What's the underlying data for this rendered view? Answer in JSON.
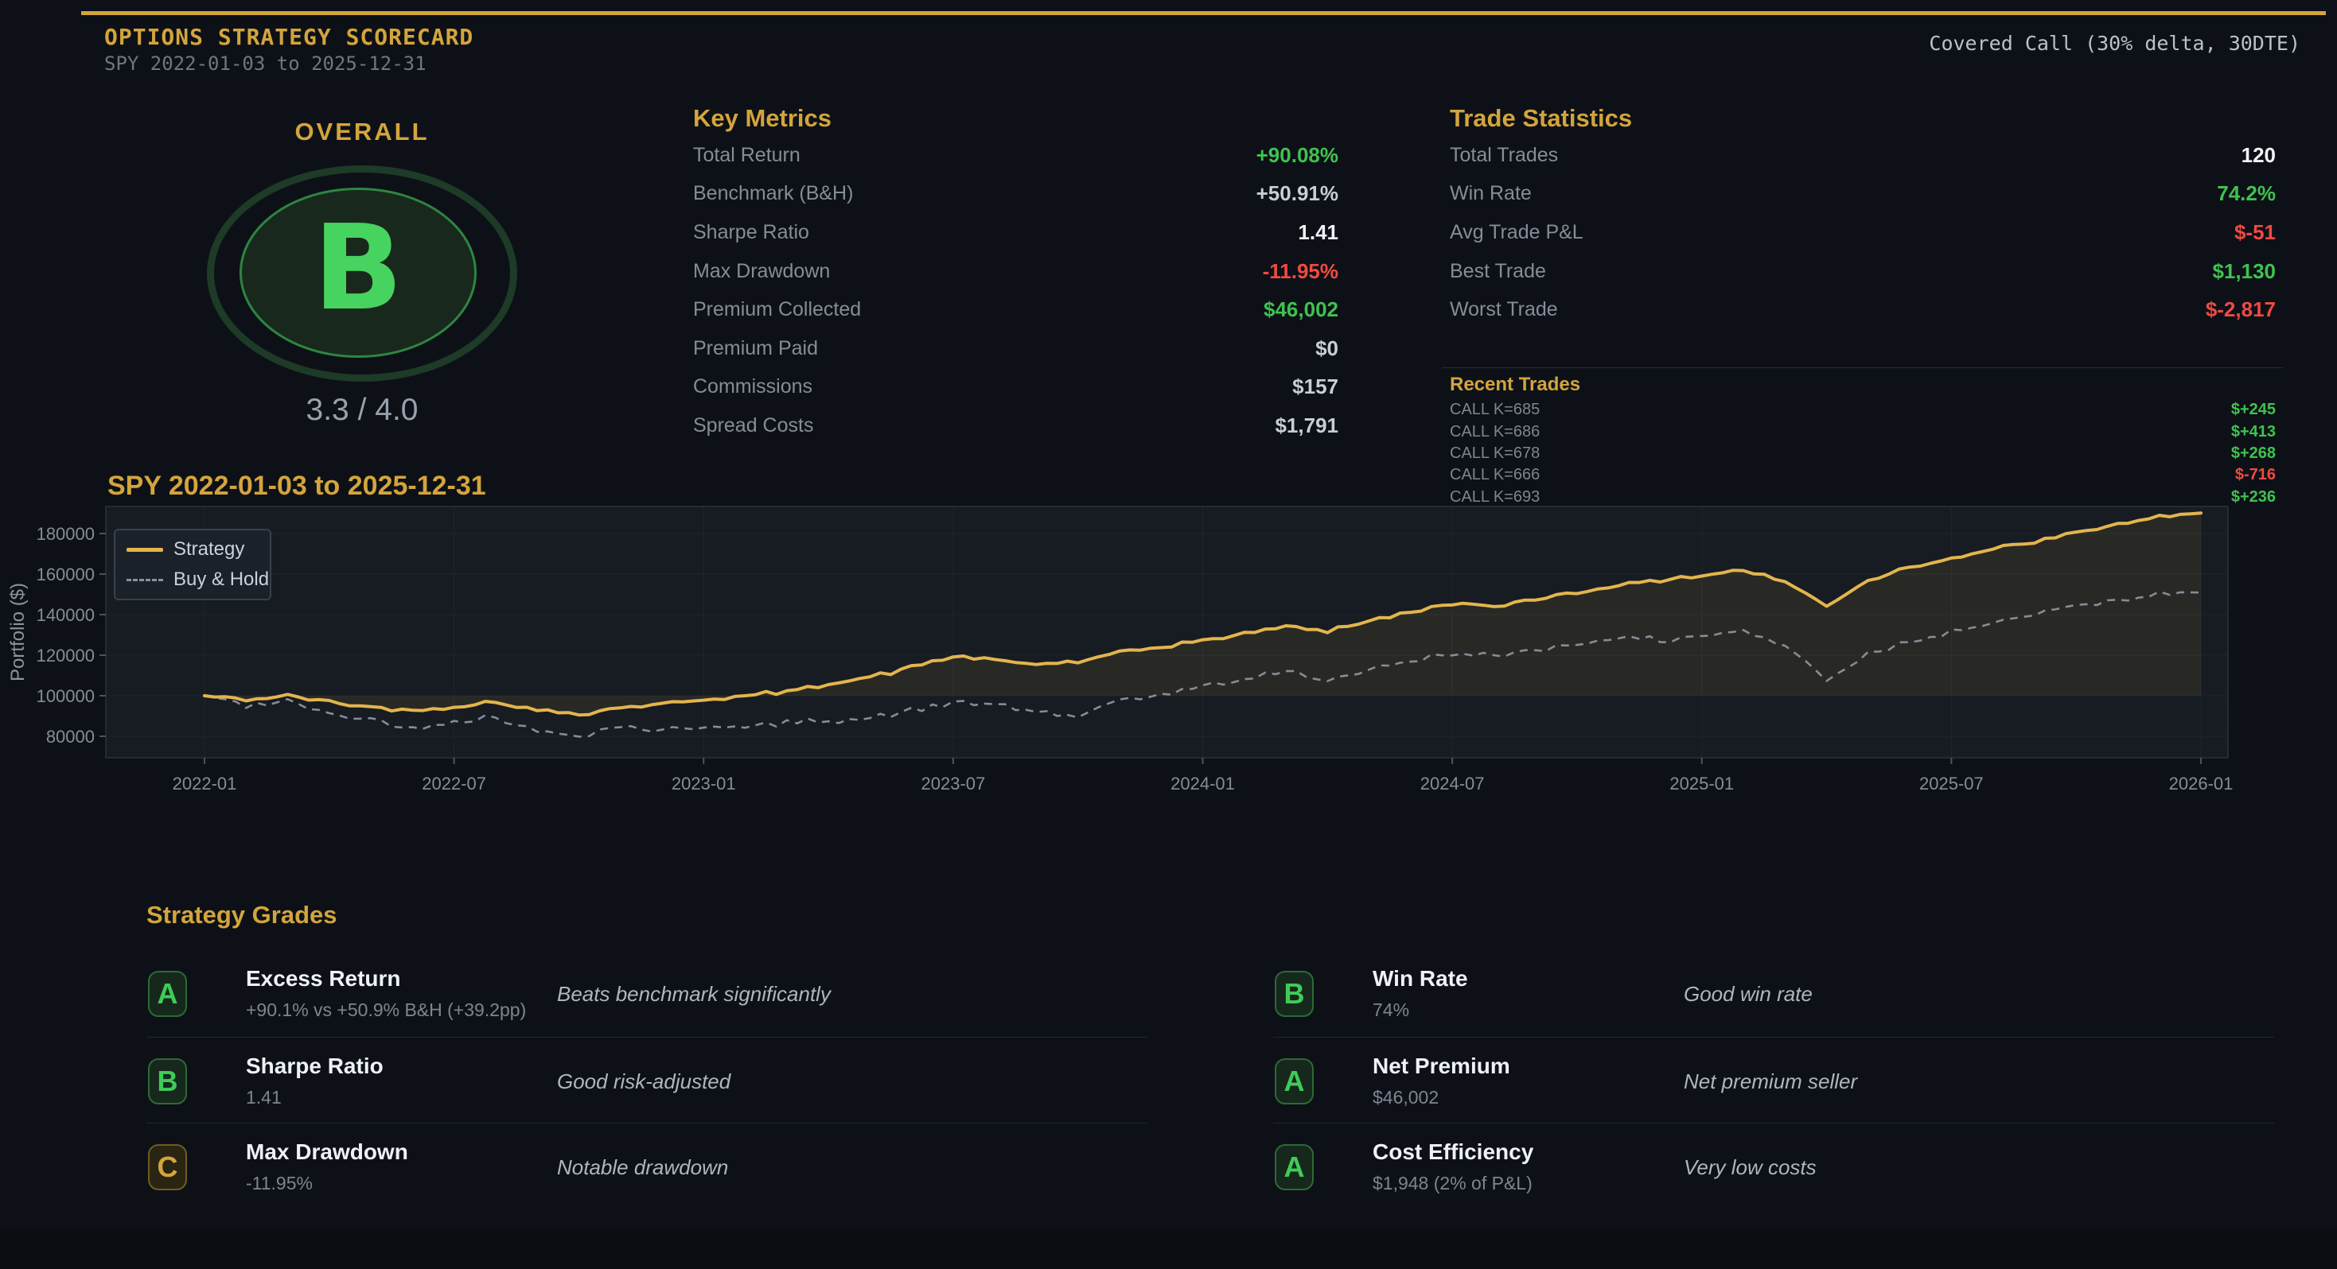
{
  "header": {
    "title": "OPTIONS STRATEGY SCORECARD",
    "subtitle": "SPY 2022-01-03 to 2025-12-31",
    "strategy_label": "Covered Call (30% delta, 30DTE)"
  },
  "overall": {
    "label": "OVERALL",
    "grade": "B",
    "score": "3.3 / 4.0"
  },
  "key_metrics": {
    "title": "Key Metrics",
    "rows": [
      {
        "label": "Total Return",
        "value": "+90.08%",
        "color": "green"
      },
      {
        "label": "Benchmark (B&H)",
        "value": "+50.91%",
        "color": "dim"
      },
      {
        "label": "Sharpe Ratio",
        "value": "1.41",
        "color": "bright"
      },
      {
        "label": "Max Drawdown",
        "value": "-11.95%",
        "color": "red"
      },
      {
        "label": "Premium Collected",
        "value": "$46,002",
        "color": "green"
      },
      {
        "label": "Premium Paid",
        "value": "$0",
        "color": "dim"
      },
      {
        "label": "Commissions",
        "value": "$157",
        "color": "dim"
      },
      {
        "label": "Spread Costs",
        "value": "$1,791",
        "color": "dim"
      }
    ]
  },
  "trade_stats": {
    "title": "Trade Statistics",
    "rows": [
      {
        "label": "Total Trades",
        "value": "120",
        "color": "bright"
      },
      {
        "label": "Win Rate",
        "value": "74.2%",
        "color": "green"
      },
      {
        "label": "Avg Trade P&L",
        "value": "$-51",
        "color": "red"
      },
      {
        "label": "Best Trade",
        "value": "$1,130",
        "color": "green"
      },
      {
        "label": "Worst Trade",
        "value": "$-2,817",
        "color": "red"
      }
    ]
  },
  "recent_trades": {
    "title": "Recent Trades",
    "rows": [
      {
        "label": "CALL K=685",
        "value": "$+245",
        "color": "green"
      },
      {
        "label": "CALL K=686",
        "value": "$+413",
        "color": "green"
      },
      {
        "label": "CALL K=678",
        "value": "$+268",
        "color": "green"
      },
      {
        "label": "CALL K=666",
        "value": "$-716",
        "color": "red"
      },
      {
        "label": "CALL K=693",
        "value": "$+236",
        "color": "green"
      }
    ]
  },
  "chart_data": {
    "type": "line",
    "title": "SPY 2022-01-03 to 2025-12-31",
    "xlabel": "",
    "ylabel": "Portfolio ($)",
    "x_start": "2022-01",
    "x_end": "2026-01",
    "x_interval": "monthly",
    "x_ticks": [
      "2022-01",
      "2022-07",
      "2023-01",
      "2023-07",
      "2024-01",
      "2024-07",
      "2025-01",
      "2025-07",
      "2026-01"
    ],
    "y_ticks": [
      80000,
      100000,
      120000,
      140000,
      160000,
      180000
    ],
    "ylim": [
      69400,
      193300
    ],
    "grid": true,
    "legend_position": "upper-left",
    "baseline": 100000,
    "series": [
      {
        "name": "Strategy",
        "style": "solid",
        "color": "#e3b54d",
        "monthly_values": [
          100000,
          98000,
          100000,
          97000,
          94500,
          92500,
          95000,
          97000,
          92500,
          91000,
          94500,
          96000,
          98000,
          100000,
          102000,
          106000,
          109000,
          114000,
          119000,
          117500,
          115500,
          116500,
          121000,
          124500,
          127000,
          130500,
          134000,
          132000,
          137000,
          141000,
          145500,
          143500,
          148000,
          151000,
          155000,
          157000,
          159500,
          162000,
          156000,
          144500,
          157000,
          163500,
          168000,
          172000,
          176000,
          180000,
          184500,
          188000,
          190080
        ]
      },
      {
        "name": "Buy & Hold",
        "style": "dashed",
        "color": "#8a929c",
        "monthly_values": [
          100000,
          95500,
          97500,
          91000,
          88500,
          83500,
          87500,
          89500,
          82500,
          80500,
          85000,
          82500,
          85500,
          84000,
          86500,
          88000,
          89000,
          92500,
          97000,
          95000,
          92000,
          90000,
          97000,
          101000,
          104000,
          108000,
          112000,
          108000,
          113000,
          117000,
          121000,
          119000,
          123000,
          125000,
          129000,
          127000,
          130000,
          132000,
          124000,
          108500,
          121000,
          127000,
          132000,
          136000,
          140000,
          144000,
          147000,
          150000,
          150910
        ]
      }
    ]
  },
  "grades": {
    "title": "Strategy Grades",
    "left": [
      {
        "grade": "A",
        "tone": "green",
        "title": "Excess Return",
        "detail": "+90.1% vs +50.9% B&H (+39.2pp)",
        "note": "Beats benchmark significantly"
      },
      {
        "grade": "B",
        "tone": "green",
        "title": "Sharpe Ratio",
        "detail": "1.41",
        "note": "Good risk-adjusted"
      },
      {
        "grade": "C",
        "tone": "yellow",
        "title": "Max Drawdown",
        "detail": "-11.95%",
        "note": "Notable drawdown"
      }
    ],
    "right": [
      {
        "grade": "B",
        "tone": "green",
        "title": "Win Rate",
        "detail": "74%",
        "note": "Good win rate"
      },
      {
        "grade": "A",
        "tone": "green",
        "title": "Net Premium",
        "detail": "$46,002",
        "note": "Net premium seller"
      },
      {
        "grade": "A",
        "tone": "green",
        "title": "Cost Efficiency",
        "detail": "$1,948 (2% of P&L)",
        "note": "Very low costs"
      }
    ]
  },
  "colors": {
    "background": "#0d1117",
    "accent_gold": "#d4a43c",
    "green": "#3fc24f",
    "red": "#f04a42",
    "strategy_line": "#e3b54d",
    "benchmark_line": "#8a929c",
    "plot_background": "#171b22"
  }
}
